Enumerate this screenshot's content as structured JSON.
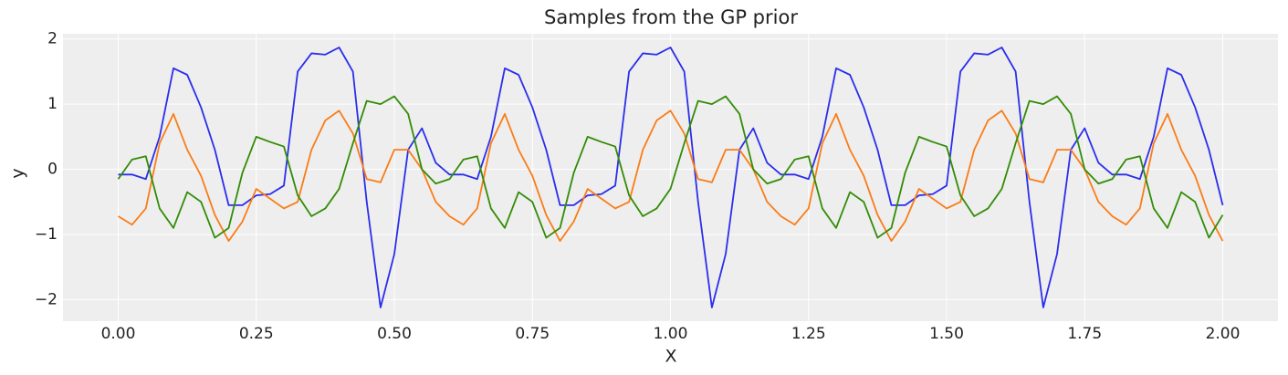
{
  "chart_data": {
    "type": "line",
    "title": "Samples from the GP prior",
    "x_label": "X",
    "y_label": "y",
    "x": [
      0,
      0.025,
      0.05,
      0.075,
      0.1,
      0.125,
      0.15,
      0.175,
      0.2,
      0.225,
      0.25,
      0.275,
      0.3,
      0.325,
      0.35,
      0.375,
      0.4,
      0.425,
      0.45,
      0.475,
      0.5,
      0.525,
      0.55,
      0.575,
      0.6,
      0.625,
      0.65,
      0.675,
      0.7,
      0.725,
      0.75,
      0.775,
      0.8,
      0.825,
      0.85,
      0.875,
      0.9,
      0.925,
      0.95,
      0.975,
      1,
      1.025,
      1.05,
      1.075,
      1.1,
      1.125,
      1.15,
      1.175,
      1.2,
      1.225,
      1.25,
      1.275,
      1.3,
      1.325,
      1.35,
      1.375,
      1.4,
      1.425,
      1.45,
      1.475,
      1.5,
      1.525,
      1.55,
      1.575,
      1.6,
      1.625,
      1.65,
      1.675,
      1.7,
      1.725,
      1.75,
      1.775,
      1.8,
      1.825,
      1.85,
      1.875,
      1.9,
      1.925,
      1.95,
      1.975,
      2
    ],
    "series": [
      {
        "color": "#2a2eec",
        "values": [
          -0.08,
          -0.08,
          -0.15,
          0.5,
          1.55,
          1.45,
          0.95,
          0.3,
          -0.55,
          -0.55,
          -0.4,
          -0.38,
          -0.25,
          1.5,
          1.78,
          1.76,
          1.87,
          1.5,
          -0.5,
          -2.12,
          -1.3,
          0.3,
          0.63,
          0.1,
          -0.08,
          -0.08,
          -0.15,
          0.5,
          1.55,
          1.45,
          0.95,
          0.3,
          -0.55,
          -0.55,
          -0.4,
          -0.38,
          -0.25,
          1.5,
          1.78,
          1.76,
          1.87,
          1.5,
          -0.5,
          -2.12,
          -1.3,
          0.3,
          0.63,
          0.1,
          -0.08,
          -0.08,
          -0.15,
          0.5,
          1.55,
          1.45,
          0.95,
          0.3,
          -0.55,
          -0.55,
          -0.4,
          -0.38,
          -0.25,
          1.5,
          1.78,
          1.76,
          1.87,
          1.5,
          -0.5,
          -2.12,
          -1.3,
          0.3,
          0.63,
          0.1,
          -0.08,
          -0.08,
          -0.15,
          0.5,
          1.55,
          1.45,
          0.95,
          0.3,
          -0.55
        ]
      },
      {
        "color": "#fa7c17",
        "values": [
          -0.72,
          -0.85,
          -0.6,
          0.4,
          0.85,
          0.3,
          -0.1,
          -0.7,
          -1.1,
          -0.8,
          -0.3,
          -0.45,
          -0.6,
          -0.5,
          0.3,
          0.75,
          0.9,
          0.55,
          -0.15,
          -0.2,
          0.3,
          0.3,
          0.0,
          -0.5,
          -0.72,
          -0.85,
          -0.6,
          0.4,
          0.85,
          0.3,
          -0.1,
          -0.7,
          -1.1,
          -0.8,
          -0.3,
          -0.45,
          -0.6,
          -0.5,
          0.3,
          0.75,
          0.9,
          0.55,
          -0.15,
          -0.2,
          0.3,
          0.3,
          0.0,
          -0.5,
          -0.72,
          -0.85,
          -0.6,
          0.4,
          0.85,
          0.3,
          -0.1,
          -0.7,
          -1.1,
          -0.8,
          -0.3,
          -0.45,
          -0.6,
          -0.5,
          0.3,
          0.75,
          0.9,
          0.55,
          -0.15,
          -0.2,
          0.3,
          0.3,
          0.0,
          -0.5,
          -0.72,
          -0.85,
          -0.6,
          0.4,
          0.85,
          0.3,
          -0.1,
          -0.7,
          -1.1
        ]
      },
      {
        "color": "#328c06",
        "values": [
          -0.15,
          0.15,
          0.2,
          -0.6,
          -0.9,
          -0.35,
          -0.5,
          -1.05,
          -0.9,
          -0.05,
          0.5,
          0.42,
          0.35,
          -0.4,
          -0.72,
          -0.6,
          -0.3,
          0.4,
          1.05,
          1.0,
          1.12,
          0.85,
          0.0,
          -0.22,
          -0.15,
          0.15,
          0.2,
          -0.6,
          -0.9,
          -0.35,
          -0.5,
          -1.05,
          -0.9,
          -0.05,
          0.5,
          0.42,
          0.35,
          -0.4,
          -0.72,
          -0.6,
          -0.3,
          0.4,
          1.05,
          1.0,
          1.12,
          0.85,
          0.0,
          -0.22,
          -0.15,
          0.15,
          0.2,
          -0.6,
          -0.9,
          -0.35,
          -0.5,
          -1.05,
          -0.9,
          -0.05,
          0.5,
          0.42,
          0.35,
          -0.4,
          -0.72,
          -0.6,
          -0.3,
          0.4,
          1.05,
          1.0,
          1.12,
          0.85,
          0.0,
          -0.22,
          -0.15,
          0.15,
          0.2,
          -0.6,
          -0.9,
          -0.35,
          -0.5,
          -1.05,
          -0.7
        ]
      }
    ],
    "xlim": [
      -0.1,
      2.1
    ],
    "ylim": [
      -2.33,
      2.08
    ],
    "xticks": [
      {
        "value": 0,
        "label": "0.00"
      },
      {
        "value": 0.25,
        "label": "0.25"
      },
      {
        "value": 0.5,
        "label": "0.50"
      },
      {
        "value": 0.75,
        "label": "0.75"
      },
      {
        "value": 1,
        "label": "1.00"
      },
      {
        "value": 1.25,
        "label": "1.25"
      },
      {
        "value": 1.5,
        "label": "1.50"
      },
      {
        "value": 1.75,
        "label": "1.75"
      },
      {
        "value": 2,
        "label": "2.00"
      }
    ],
    "yticks": [
      {
        "value": -2,
        "label": "−2"
      },
      {
        "value": -1,
        "label": "−1"
      },
      0,
      1,
      2
    ],
    "grid": true
  }
}
